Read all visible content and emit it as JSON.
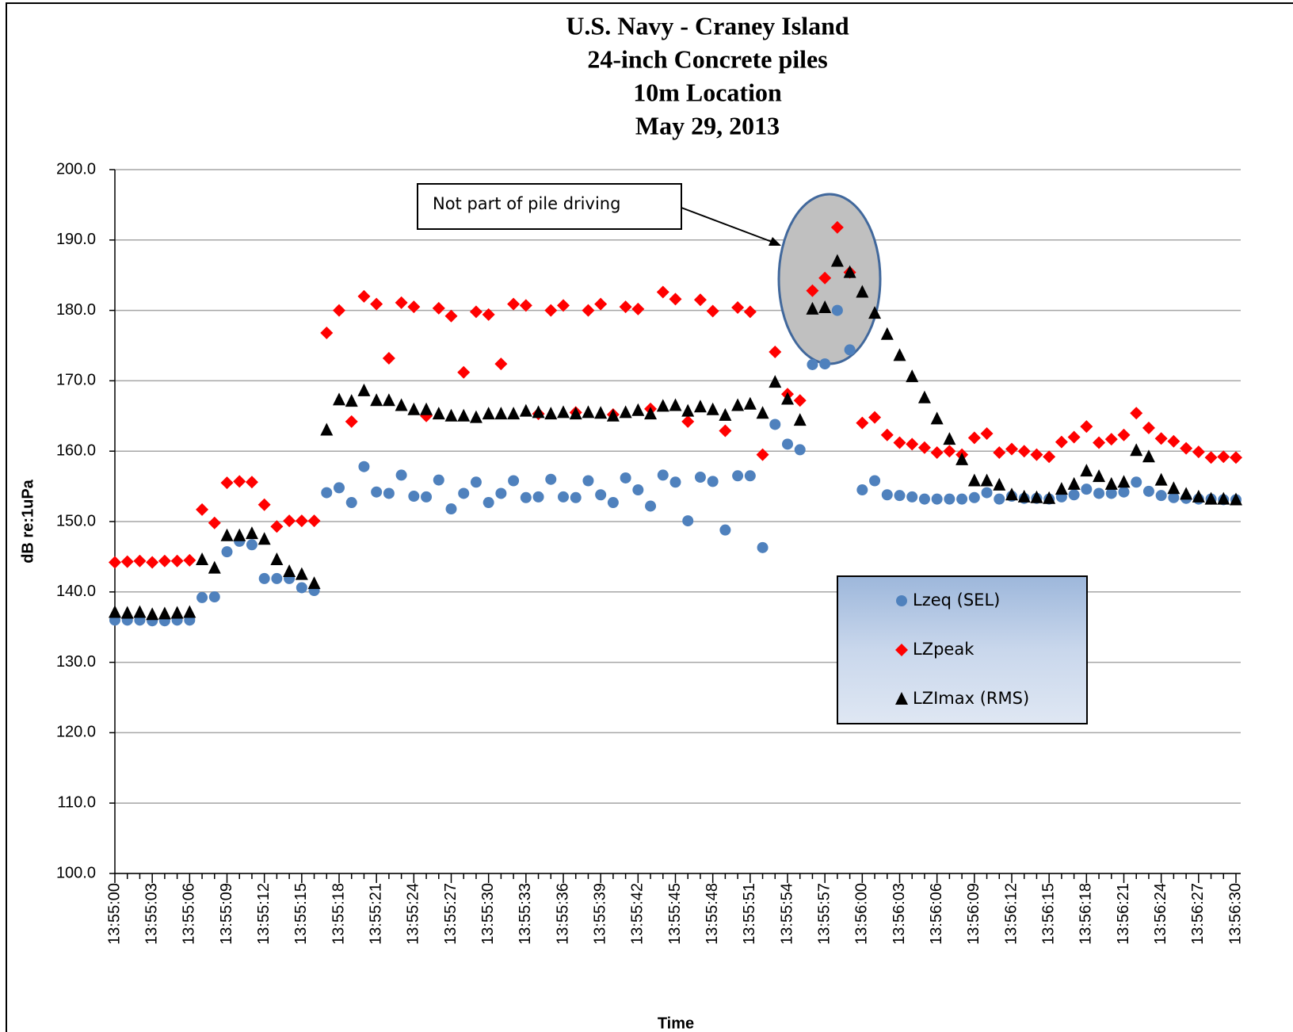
{
  "chart_data": {
    "type": "scatter",
    "title_lines": [
      "U.S. Navy - Craney Island",
      "24-inch Concrete piles",
      "10m Location",
      "May 29, 2013"
    ],
    "xlabel": "Time",
    "ylabel": "dB re:1uPa",
    "annotation": "Not part of pile driving",
    "categories": [
      "13:55:00",
      null,
      null,
      "13:55:03",
      null,
      null,
      "13:55:06",
      null,
      null,
      "13:55:09",
      null,
      null,
      "13:55:12",
      null,
      null,
      "13:55:15",
      null,
      null,
      "13:55:18",
      null,
      null,
      "13:55:21",
      null,
      null,
      "13:55:24",
      null,
      null,
      "13:55:27",
      null,
      null,
      "13:55:30",
      null,
      null,
      "13:55:33",
      null,
      null,
      "13:55:36",
      null,
      null,
      "13:55:39",
      null,
      null,
      "13:55:42",
      null,
      null,
      "13:55:45",
      null,
      null,
      "13:55:48",
      null,
      null,
      "13:55:51",
      null,
      null,
      "13:55:54",
      null,
      null,
      "13:55:57",
      null,
      null,
      "13:56:00",
      null,
      null,
      "13:56:03",
      null,
      null,
      "13:56:06",
      null,
      null,
      "13:56:09",
      null,
      null,
      "13:56:12",
      null,
      null,
      "13:56:15",
      null,
      null,
      "13:56:18",
      null,
      null,
      "13:56:21",
      null,
      null,
      "13:56:24",
      null,
      null,
      "13:56:27",
      null,
      null,
      "13:56:30"
    ],
    "ylim": [
      100,
      200
    ],
    "yticks": [
      {
        "value": 100,
        "label": "100.0"
      },
      {
        "value": 110,
        "label": "110.0"
      },
      {
        "value": 120,
        "label": "120.0"
      },
      {
        "value": 130,
        "label": "130.0"
      },
      {
        "value": 140,
        "label": "140.0"
      },
      {
        "value": 150,
        "label": "150.0"
      },
      {
        "value": 160,
        "label": "160.0"
      },
      {
        "value": 170,
        "label": "170.0"
      },
      {
        "value": 180,
        "label": "180.0"
      },
      {
        "value": 190,
        "label": "190.0"
      },
      {
        "value": 200,
        "label": "200.0"
      }
    ],
    "grid": true,
    "series": [
      {
        "name": "Lzeq (SEL)",
        "color": "#4f81bd",
        "marker": "circle",
        "values": [
          136,
          136,
          136,
          135.9,
          135.9,
          136,
          136,
          139.2,
          139.3,
          145.7,
          147.2,
          146.7,
          141.9,
          141.9,
          141.9,
          140.6,
          140.2,
          154.1,
          154.8,
          152.7,
          157.8,
          154.2,
          154,
          156.6,
          153.6,
          153.5,
          155.9,
          151.8,
          154,
          155.6,
          152.7,
          154,
          155.8,
          153.4,
          153.5,
          156,
          153.5,
          153.4,
          155.8,
          153.8,
          152.7,
          156.2,
          154.5,
          152.2,
          156.6,
          155.6,
          150.1,
          156.3,
          155.7,
          148.8,
          156.5,
          156.5,
          146.3,
          163.8,
          161,
          160.2,
          172.3,
          172.4,
          180,
          174.4,
          154.5,
          155.8,
          153.8,
          153.7,
          153.5,
          153.2,
          153.2,
          153.2,
          153.2,
          153.4,
          154.1,
          153.2,
          153.6,
          153.3,
          153.3,
          153.2,
          153.5,
          153.8,
          154.6,
          154,
          154,
          154.2,
          155.6,
          154.3,
          153.7,
          153.4,
          153.3,
          153.2,
          153.2,
          153.1,
          153.1
        ]
      },
      {
        "name": "LZpeak",
        "color": "#ff0000",
        "marker": "diamond",
        "values": [
          144.2,
          144.3,
          144.4,
          144.2,
          144.4,
          144.4,
          144.5,
          151.7,
          149.8,
          155.5,
          155.7,
          155.6,
          152.4,
          149.3,
          150.1,
          150.1,
          150.1,
          176.8,
          180,
          164.2,
          182,
          180.9,
          173.2,
          181.1,
          180.5,
          165,
          180.3,
          179.2,
          171.2,
          179.8,
          179.4,
          172.4,
          180.9,
          180.7,
          165.3,
          180,
          180.7,
          165.5,
          180,
          180.9,
          165.2,
          180.5,
          180.2,
          166,
          182.6,
          181.6,
          164.2,
          181.5,
          179.9,
          162.9,
          180.4,
          179.8,
          159.5,
          174.1,
          168.1,
          167.2,
          182.8,
          184.6,
          191.8,
          185.4,
          164,
          164.8,
          162.3,
          161.2,
          161,
          160.5,
          159.8,
          160,
          159.5,
          161.9,
          162.5,
          159.8,
          160.3,
          160,
          159.5,
          159.2,
          161.3,
          162,
          163.5,
          161.2,
          161.7,
          162.3,
          165.4,
          163.3,
          161.8,
          161.4,
          160.4,
          159.9,
          159.1,
          159.2,
          159.1
        ]
      },
      {
        "name": "LZImax (RMS)",
        "color": "#000000",
        "marker": "triangle",
        "values": [
          137.1,
          137,
          137.1,
          136.8,
          136.9,
          137,
          137.1,
          144.6,
          143.4,
          148,
          148,
          148.3,
          147.5,
          144.6,
          142.9,
          142.5,
          141.2,
          163,
          167.3,
          167.1,
          168.6,
          167.2,
          167.2,
          166.5,
          165.9,
          165.9,
          165.3,
          165,
          165,
          164.8,
          165.3,
          165.3,
          165.3,
          165.7,
          165.5,
          165.3,
          165.5,
          165.3,
          165.5,
          165.4,
          165,
          165.5,
          165.8,
          165.3,
          166.4,
          166.5,
          165.7,
          166.3,
          165.9,
          165.1,
          166.5,
          166.7,
          165.4,
          169.8,
          167.4,
          164.4,
          180.2,
          180.4,
          187,
          185.4,
          182.6,
          179.6,
          176.6,
          173.6,
          170.6,
          167.6,
          164.6,
          161.7,
          158.8,
          155.8,
          155.8,
          155.2,
          153.8,
          153.5,
          153.4,
          153.3,
          154.6,
          155.3,
          157.2,
          156.4,
          155.3,
          155.6,
          160.1,
          159.2,
          155.9,
          154.7,
          153.9,
          153.5,
          153.2,
          153.2,
          153.1
        ]
      }
    ]
  }
}
